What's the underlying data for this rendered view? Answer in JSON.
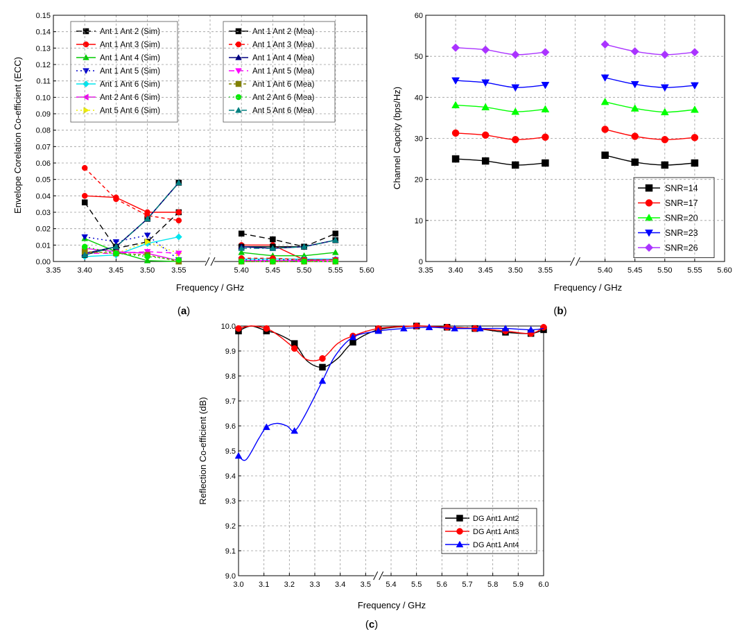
{
  "chart_data": [
    {
      "panel": "a",
      "caption": "a",
      "type": "line",
      "xlabel": "Frequency / GHz",
      "ylabel": "Envelope Corelation Co-efficient (ECC)",
      "xticks": [
        "3.35",
        "3.40",
        "3.45",
        "3.50",
        "3.55",
        "",
        "5.40",
        "5.45",
        "5.50",
        "5.55",
        "5.60"
      ],
      "x": [
        "3.40",
        "3.45",
        "3.50",
        "3.55",
        "5.40",
        "5.45",
        "5.50",
        "5.55"
      ],
      "ylim": [
        0,
        0.15
      ],
      "ystep": 0.01,
      "ydecimals": 2,
      "yfmt_leading_zero": true,
      "grid": true,
      "break_after_index": 3,
      "legend_sim": [
        {
          "name": "Ant 1 Ant 2 (Sim)",
          "color": "#000000",
          "marker": "square",
          "dash": "8,5",
          "values": [
            0.036,
            0.008,
            0.012,
            0.03,
            0.017,
            0.0135,
            0.009,
            0.017
          ]
        },
        {
          "name": "Ant 1 Ant 3 (Sim)",
          "color": "#ff0000",
          "marker": "circle",
          "dash": "",
          "values": [
            0.04,
            0.039,
            0.03,
            0.03,
            0.01,
            0.01,
            0.001,
            0.001
          ]
        },
        {
          "name": "Ant 1 Ant 4 (Sim)",
          "color": "#00cc00",
          "marker": "triangle-up",
          "dash": "",
          "values": [
            0.014,
            0.006,
            0.0005,
            0.0,
            0.0055,
            0.0035,
            0.0035,
            0.0055
          ]
        },
        {
          "name": "Ant 1 Ant 5 (Sim)",
          "color": "#0000cc",
          "marker": "triangle-down",
          "dash": "2,4",
          "values": [
            0.015,
            0.012,
            0.016,
            0.001,
            0.001,
            0.001,
            0.001,
            0.001
          ]
        },
        {
          "name": "Ant 1 Ant 6 (Sim)",
          "color": "#00e5ee",
          "marker": "diamond",
          "dash": "",
          "values": [
            0.003,
            0.004,
            0.011,
            0.015,
            0.0015,
            0.0015,
            0.0015,
            0.0015
          ]
        },
        {
          "name": "Ant 2 Ant 6 (Sim)",
          "color": "#ee00ee",
          "marker": "triangle-left",
          "dash": "",
          "values": [
            0.008,
            0.006,
            0.005,
            0.0005,
            0.0005,
            0.0005,
            0.0005,
            0.001
          ]
        },
        {
          "name": "Ant 5 Ant 6 (Sim)",
          "color": "#eeee00",
          "marker": "triangle-right",
          "dash": "2,4",
          "values": [
            0.006,
            0.005,
            0.012,
            0.005,
            0.0,
            0.0,
            0.0,
            0.0
          ]
        }
      ],
      "legend_mea": [
        {
          "name": "Ant 1 Ant 2 (Mea)",
          "color": "#000000",
          "marker": "square",
          "dash": "",
          "values": [
            0.004,
            0.009,
            0.026,
            0.048,
            0.009,
            0.009,
            0.009,
            0.013
          ]
        },
        {
          "name": "Ant 1 Ant 3  (Mea)",
          "color": "#ff0000",
          "marker": "circle",
          "dash": "5,4",
          "values": [
            0.057,
            0.038,
            0.028,
            0.025,
            0.002,
            0.002,
            0.001,
            0.001
          ]
        },
        {
          "name": "Ant 1 Ant 4 (Mea)",
          "color": "#000080",
          "marker": "triangle-up",
          "dash": "",
          "values": [
            0.005,
            0.009,
            0.026,
            0.048,
            0.009,
            0.008,
            0.009,
            0.013
          ]
        },
        {
          "name": "Ant 1 Ant 5 (Mea)",
          "color": "#ff00ff",
          "marker": "triangle-down",
          "dash": "8,5",
          "values": [
            0.005,
            0.005,
            0.006,
            0.005,
            0.0,
            0.0,
            0.0,
            0.0
          ]
        },
        {
          "name": "Ant 1 Ant 6 (Mea)",
          "color": "#808000",
          "marker": "square",
          "dash": "4,3",
          "values": [
            0.006,
            0.005,
            0.004,
            0.0,
            0.0,
            0.0,
            0.0,
            0.0
          ]
        },
        {
          "name": "Ant 2 Ant 6 (Mea)",
          "color": "#00ee00",
          "marker": "circle",
          "dash": "2,4",
          "values": [
            0.009,
            0.005,
            0.003,
            0.001,
            0.0,
            0.0,
            0.0,
            0.0
          ]
        },
        {
          "name": "Ant 5 Ant 6 (Mea)",
          "color": "#008080",
          "marker": "triangle-up",
          "dash": "8,4,2,4",
          "values": [
            0.004,
            0.009,
            0.026,
            0.048,
            0.008,
            0.008,
            0.009,
            0.013
          ]
        }
      ]
    },
    {
      "panel": "b",
      "caption": "b",
      "type": "line",
      "xlabel": "Frequency / GHz",
      "ylabel": "Channel Capcity (bps/Hz)",
      "xticks": [
        "3.35",
        "3.40",
        "3.45",
        "3.50",
        "3.55",
        "",
        "5.40",
        "5.45",
        "5.50",
        "5.55",
        "5.60"
      ],
      "x": [
        "3.40",
        "3.45",
        "3.50",
        "3.55",
        "5.40",
        "5.45",
        "5.50",
        "5.55"
      ],
      "ylim": [
        0,
        60
      ],
      "ystep": 10,
      "ydecimals": 0,
      "grid": true,
      "break_after_index": 3,
      "series": [
        {
          "name": "SNR=14",
          "color": "#000000",
          "marker": "square",
          "values": [
            25.0,
            24.5,
            23.5,
            24.0,
            25.9,
            24.2,
            23.5,
            24.0
          ]
        },
        {
          "name": "SNR=17",
          "color": "#ff0000",
          "marker": "circle",
          "values": [
            31.3,
            30.8,
            29.7,
            30.3,
            32.2,
            30.5,
            29.7,
            30.2
          ]
        },
        {
          "name": "SNR=20",
          "color": "#00ff00",
          "marker": "triangle-up",
          "values": [
            38.1,
            37.6,
            36.5,
            37.1,
            38.9,
            37.3,
            36.4,
            37.0
          ]
        },
        {
          "name": "SNR=23",
          "color": "#0000ff",
          "marker": "triangle-down",
          "values": [
            44.1,
            43.6,
            42.4,
            43.0,
            44.8,
            43.2,
            42.4,
            42.9
          ]
        },
        {
          "name": "SNR=26",
          "color": "#aa33ff",
          "marker": "diamond",
          "values": [
            52.1,
            51.6,
            50.4,
            51.0,
            52.9,
            51.2,
            50.4,
            51.0
          ]
        }
      ]
    },
    {
      "panel": "c",
      "caption": "c",
      "type": "line",
      "xlabel": "Frequency / GHz",
      "ylabel": "Reflection Co-efficient (dB)",
      "xticks": [
        "3.0",
        "3.1",
        "3.2",
        "3.3",
        "3.4",
        "3.5",
        "5.4",
        "5.5",
        "5.6",
        "5.7",
        "5.8",
        "5.9",
        "6.0"
      ],
      "ylim": [
        9.0,
        10.0
      ],
      "ystep": 0.1,
      "ydecimals": 1,
      "grid": true,
      "break_between": [
        5,
        6
      ],
      "series": [
        {
          "name": "DG Ant1 Ant2",
          "color": "#000000",
          "marker": "square",
          "x": [
            0,
            0.5,
            1.1,
            1.5,
            2.2,
            2.7,
            3.3,
            3.9,
            4.5,
            5.5,
            7.0,
            8.2,
            9.3,
            10.5,
            11.5,
            12.0
          ],
          "values": [
            9.98,
            10.0,
            9.98,
            9.97,
            9.93,
            9.86,
            9.835,
            9.87,
            9.935,
            9.985,
            10.0,
            9.995,
            9.99,
            9.975,
            9.97,
            9.985
          ],
          "markers_at": [
            0,
            2,
            4,
            6,
            8,
            9,
            10,
            11,
            12,
            13,
            14,
            15
          ]
        },
        {
          "name": "DG Ant1 Ant3",
          "color": "#ff0000",
          "marker": "circle",
          "x": [
            0,
            0.5,
            1.1,
            1.6,
            2.2,
            2.7,
            3.3,
            3.9,
            4.5,
            5.5,
            7.0,
            8.2,
            9.3,
            10.5,
            11.5,
            12.0
          ],
          "values": [
            9.99,
            10.0,
            9.99,
            9.96,
            9.91,
            9.865,
            9.87,
            9.93,
            9.96,
            9.99,
            10.0,
            9.995,
            9.99,
            9.98,
            9.97,
            9.995
          ],
          "markers_at": [
            0,
            2,
            4,
            6,
            8,
            9,
            10,
            11,
            12,
            13,
            14,
            15
          ]
        },
        {
          "name": "DG Ant1 Ant4",
          "color": "#0000ff",
          "marker": "triangle-up",
          "x": [
            0,
            0.3,
            0.8,
            1.1,
            1.5,
            1.9,
            2.2,
            2.6,
            3.3,
            3.8,
            4.5,
            5.5,
            6.5,
            7.5,
            8.5,
            9.5,
            10.5,
            11.5,
            12.0
          ],
          "values": [
            9.48,
            9.465,
            9.55,
            9.595,
            9.61,
            9.6,
            9.58,
            9.64,
            9.78,
            9.88,
            9.955,
            9.98,
            9.99,
            9.995,
            9.99,
            9.99,
            9.99,
            9.985,
            9.99
          ],
          "markers_at": [
            0,
            3,
            6,
            8,
            10,
            11,
            12,
            13,
            14,
            15,
            16,
            17
          ]
        }
      ]
    }
  ]
}
